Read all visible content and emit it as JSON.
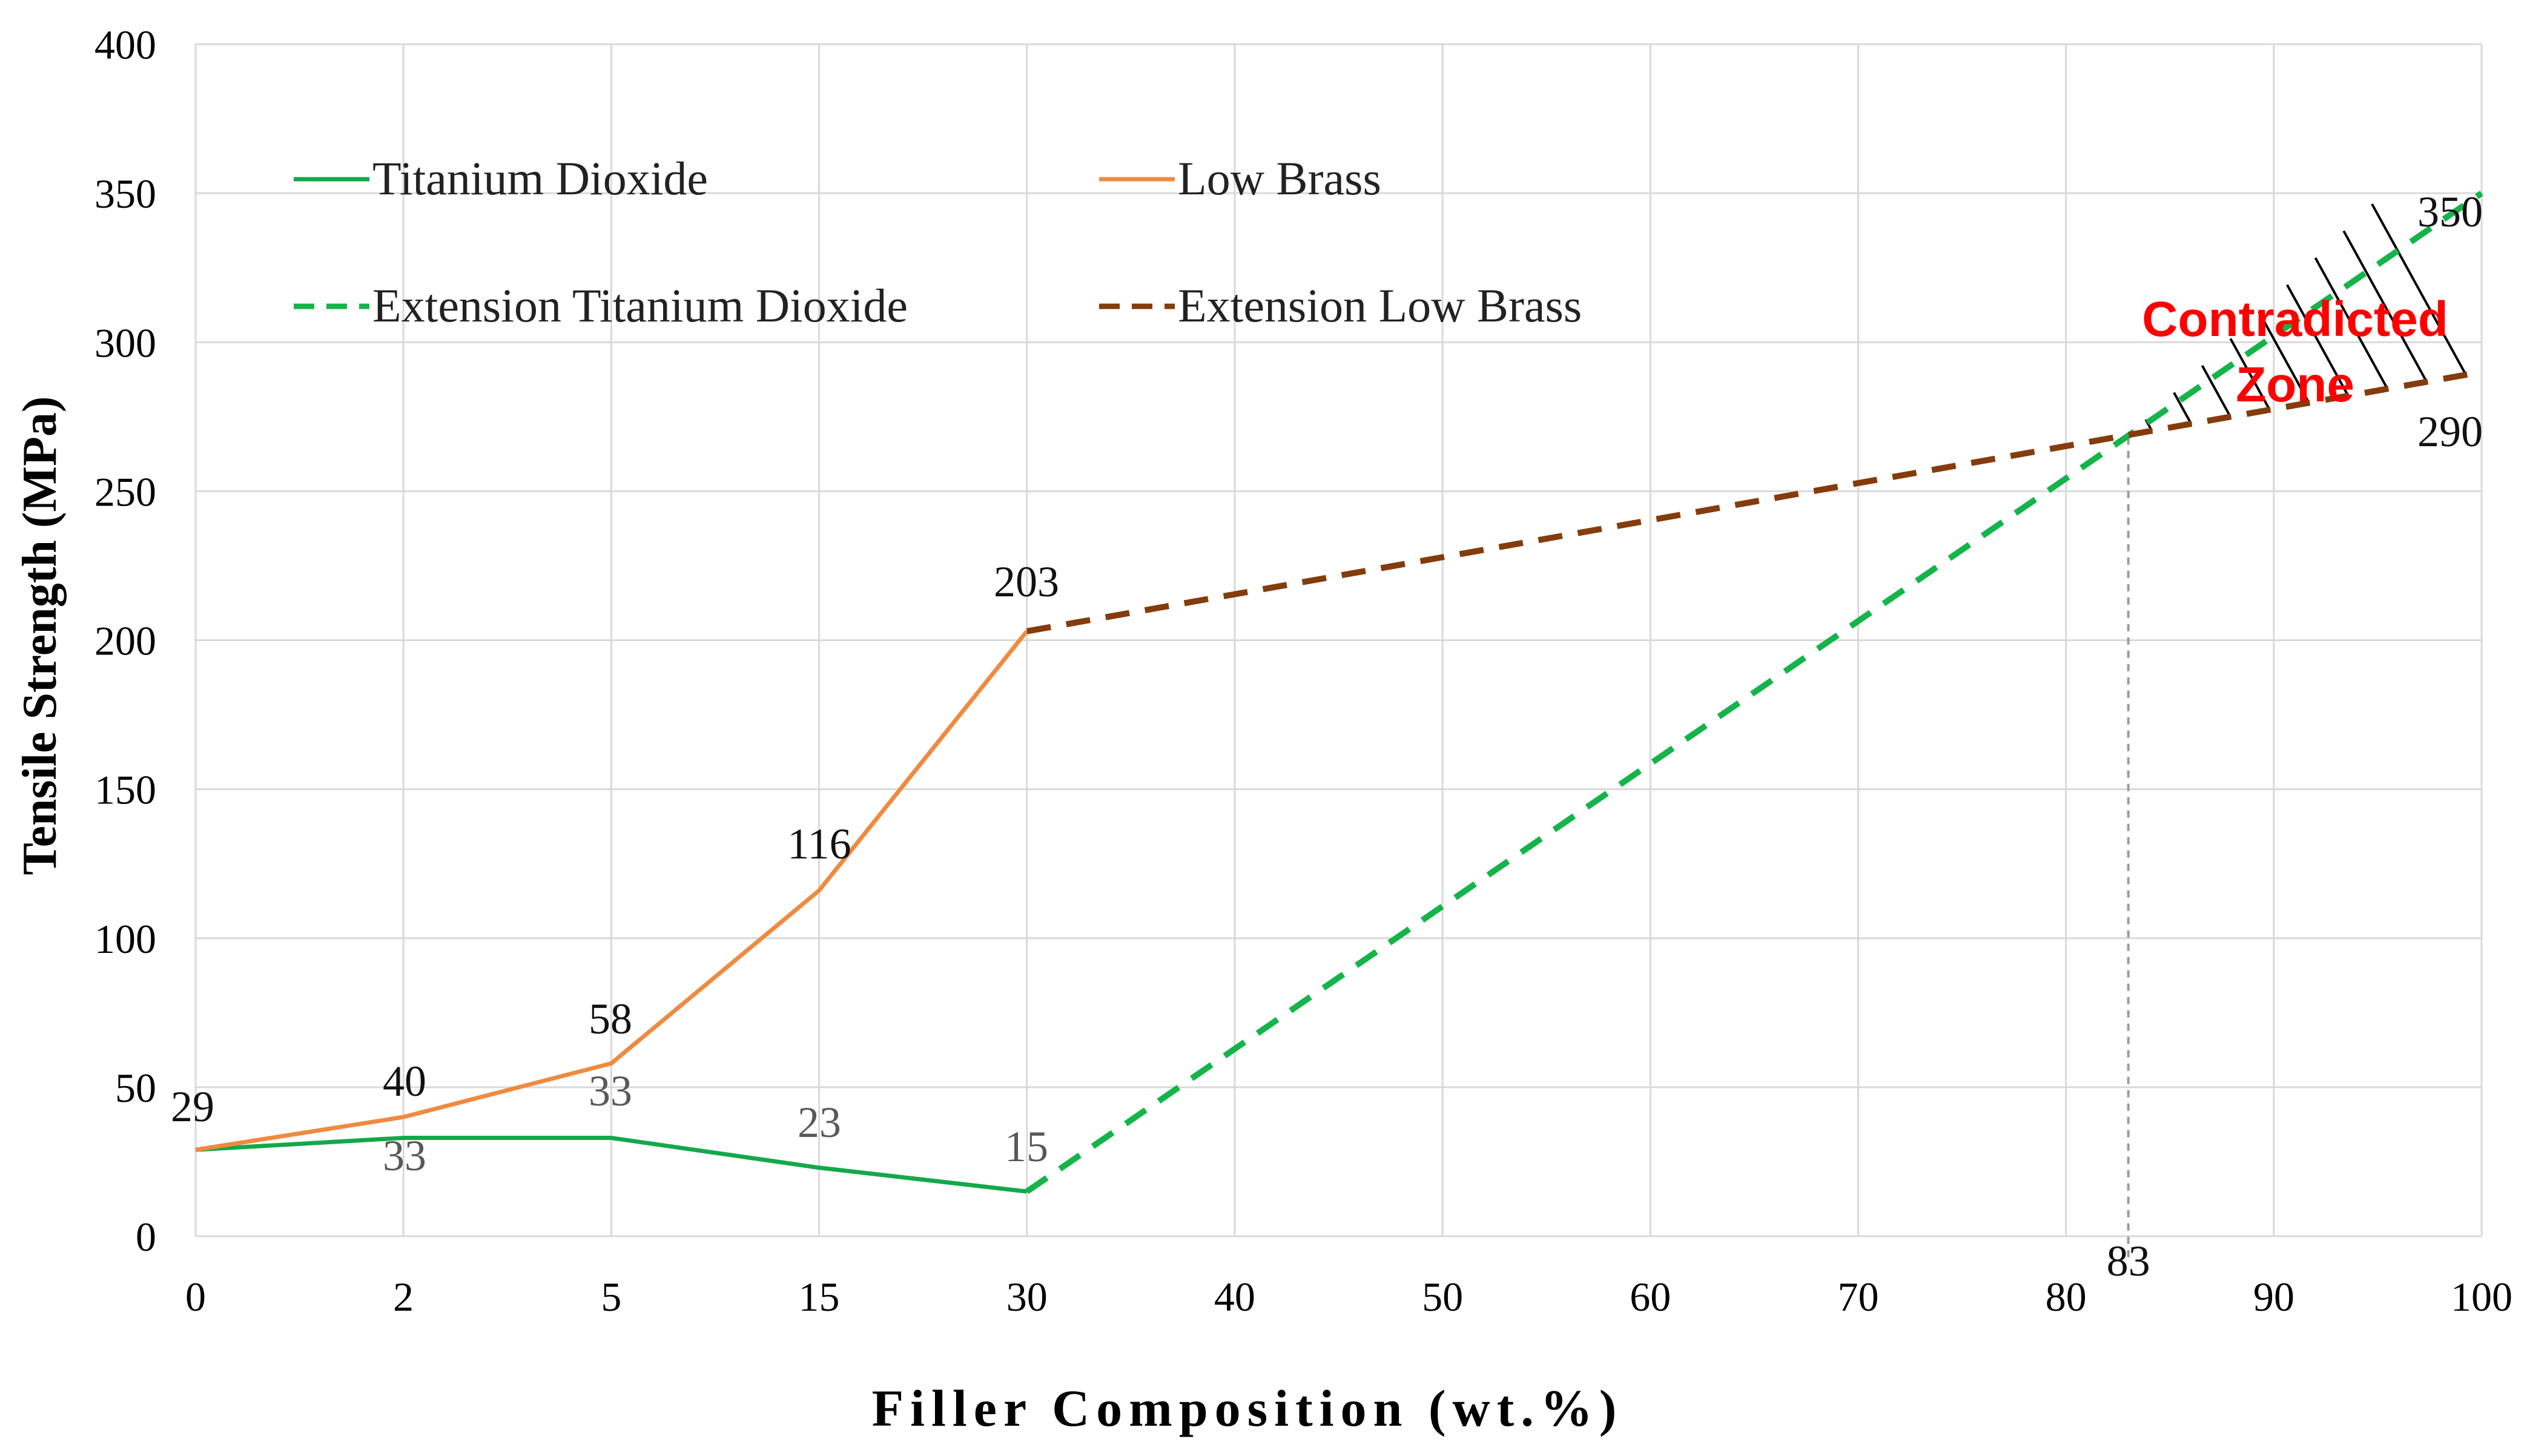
{
  "chart_data": {
    "type": "line",
    "title": "",
    "xlabel": "Filler Composition (wt.%)",
    "ylabel": "Tensile Strength (MPa)",
    "ylim": [
      0,
      400
    ],
    "y_ticks": [
      "0",
      "50",
      "100",
      "150",
      "200",
      "250",
      "300",
      "350",
      "400"
    ],
    "categories": [
      "0",
      "2",
      "5",
      "15",
      "30",
      "40",
      "50",
      "60",
      "70",
      "80",
      "90",
      "100"
    ],
    "grid": true,
    "legend_position": "top-left",
    "series": [
      {
        "name": "Titanium Dioxide",
        "color": "#14a84a",
        "style": "solid",
        "points": [
          {
            "i": 0,
            "y": 29
          },
          {
            "i": 1,
            "y": 33
          },
          {
            "i": 2,
            "y": 33
          },
          {
            "i": 3,
            "y": 23
          },
          {
            "i": 4,
            "y": 15
          }
        ]
      },
      {
        "name": "Low Brass",
        "color": "#ef8a3f",
        "style": "solid",
        "points": [
          {
            "i": 0,
            "y": 29
          },
          {
            "i": 1,
            "y": 40
          },
          {
            "i": 2,
            "y": 58
          },
          {
            "i": 3,
            "y": 116
          },
          {
            "i": 4,
            "y": 203
          }
        ]
      },
      {
        "name": "Extension Titanium Dioxide",
        "color": "#14b44a",
        "style": "dashed",
        "points": [
          {
            "i": 4,
            "y": 15
          },
          {
            "i": 11,
            "y": 350
          }
        ]
      },
      {
        "name": "Extension Low Brass",
        "color": "#843c0c",
        "style": "dashed",
        "points": [
          {
            "i": 4,
            "y": 203
          },
          {
            "i": 11,
            "y": 290
          }
        ]
      }
    ],
    "data_labels": {
      "low_brass": [
        "29",
        "40",
        "58",
        "116",
        "203"
      ],
      "titanium_dioxide": [
        "33",
        "33",
        "23",
        "15"
      ],
      "end_tio2": "350",
      "end_brass": "290"
    },
    "intersection": {
      "x": 83,
      "label": "83",
      "y": 268
    },
    "annotation": {
      "line1": "Contradicted",
      "line2": "Zone",
      "color": "#ff0000"
    }
  }
}
